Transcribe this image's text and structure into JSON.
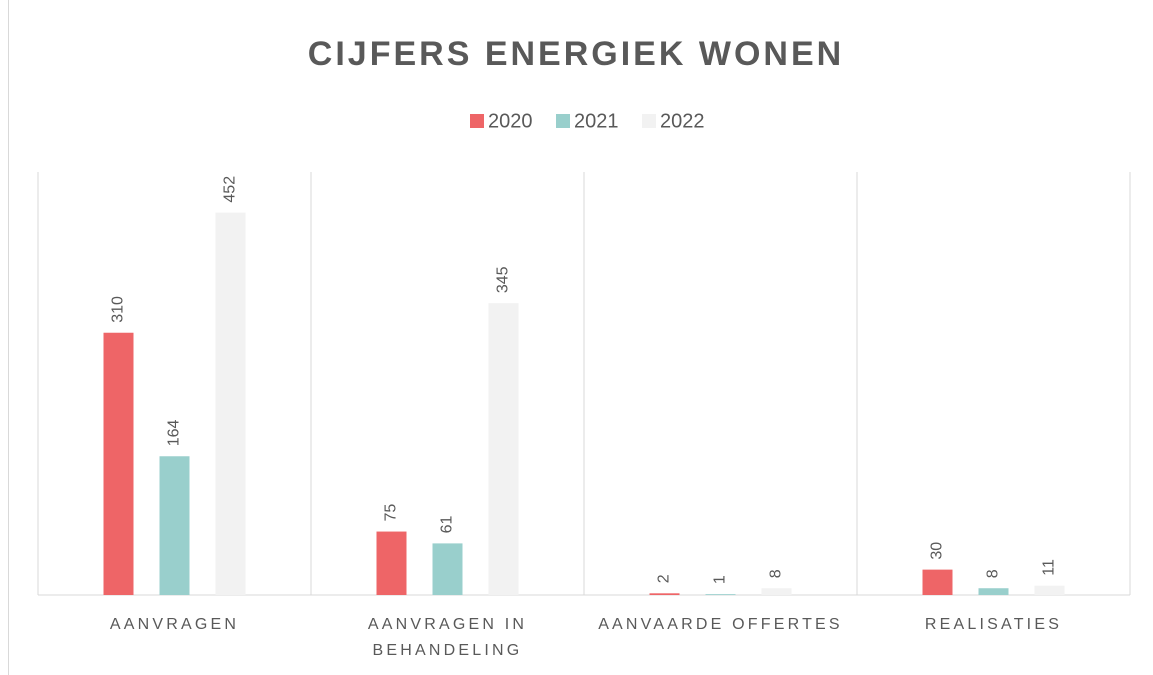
{
  "chart_data": {
    "type": "bar",
    "title": "CIJFERS ENERGIEK WONEN",
    "categories": [
      "AANVRAGEN",
      "AANVRAGEN IN BEHANDELING",
      "AANVAARDE OFFERTES",
      "REALISATIES"
    ],
    "series": [
      {
        "name": "2020",
        "color": "#ee6567",
        "values": [
          310,
          75,
          2,
          30
        ]
      },
      {
        "name": "2021",
        "color": "#99cfcc",
        "values": [
          164,
          61,
          1,
          8
        ]
      },
      {
        "name": "2022",
        "color": "#f2f2f2",
        "values": [
          452,
          345,
          8,
          11
        ]
      }
    ],
    "ylim": [
      0,
      500
    ],
    "legend": "top"
  }
}
